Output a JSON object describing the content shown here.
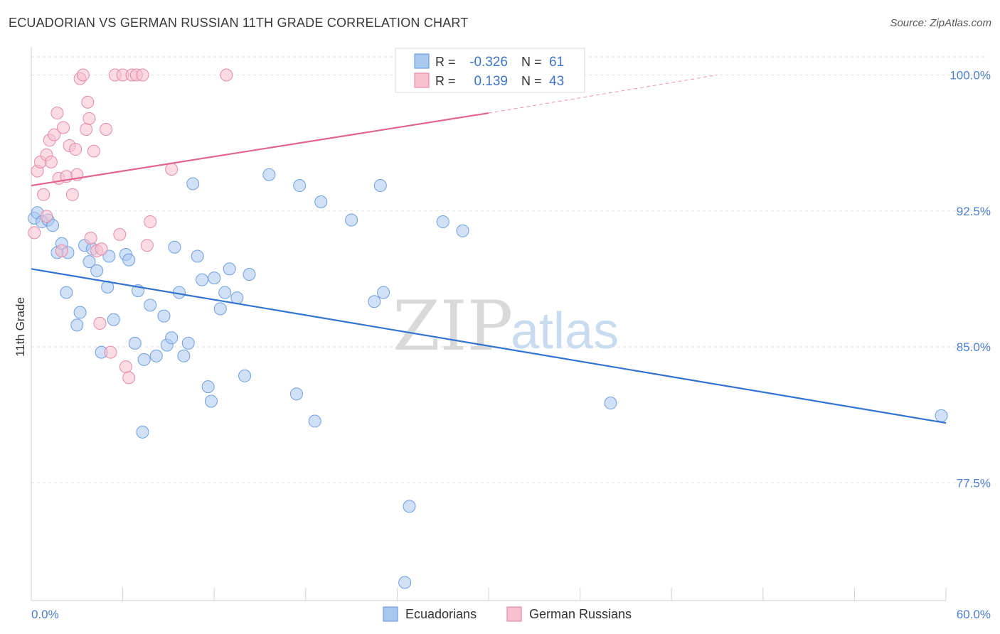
{
  "header": {
    "title": "ECUADORIAN VS GERMAN RUSSIAN 11TH GRADE CORRELATION CHART",
    "source": "Source: ZipAtlas.com"
  },
  "watermark": {
    "zip": "ZIP",
    "atlas": "atlas"
  },
  "stats": {
    "rows": [
      {
        "r_label": "R = ",
        "r_value": "-0.326",
        "n_label": "N = ",
        "n_value": "61",
        "color": "#a9c8f0",
        "stroke": "#6f9fdf"
      },
      {
        "r_label": "R = ",
        "r_value": "0.139",
        "n_label": "N = ",
        "n_value": "43",
        "color": "#f7bfd0",
        "stroke": "#e58aa7"
      }
    ]
  },
  "legend": {
    "items": [
      {
        "label": "Ecuadorians",
        "color": "#a9c8f0",
        "stroke": "#6f9fdf"
      },
      {
        "label": "German Russians",
        "color": "#f7bfd0",
        "stroke": "#e58aa7"
      }
    ]
  },
  "chart_data": {
    "type": "scatter",
    "title": "ECUADORIAN VS GERMAN RUSSIAN 11TH GRADE CORRELATION CHART",
    "xlabel": "",
    "ylabel": "11th Grade",
    "xlim": [
      0,
      60
    ],
    "ylim": [
      71,
      101
    ],
    "x_tick_labels": [
      {
        "value": 0,
        "label": "0.0%"
      },
      {
        "value": 60,
        "label": "60.0%"
      }
    ],
    "y_tick_labels": [
      {
        "value": 100,
        "label": "100.0%"
      },
      {
        "value": 92.5,
        "label": "92.5%"
      },
      {
        "value": 85,
        "label": "85.0%"
      },
      {
        "value": 77.5,
        "label": "77.5%"
      }
    ],
    "x_minor_ticks": [
      0,
      6,
      12,
      18,
      24,
      30,
      36,
      42,
      48,
      54,
      60
    ],
    "grid": true,
    "legend_position": "bottom-center",
    "series": [
      {
        "name": "Ecuadorians",
        "color": "#a9c8f0",
        "stroke": "#6f9fdf",
        "trend_color": "#3273d1",
        "trend": {
          "x0": 0,
          "y0": 89.3,
          "x1": 60,
          "y1": 80.8,
          "dashed_from": null
        },
        "points": [
          [
            0.2,
            92.1
          ],
          [
            0.4,
            92.4
          ],
          [
            0.7,
            91.9
          ],
          [
            1.1,
            92.0
          ],
          [
            1.4,
            91.7
          ],
          [
            1.7,
            90.2
          ],
          [
            2.0,
            90.7
          ],
          [
            2.4,
            90.2
          ],
          [
            2.3,
            88.0
          ],
          [
            3.0,
            86.2
          ],
          [
            3.2,
            86.9
          ],
          [
            3.5,
            90.6
          ],
          [
            3.8,
            89.7
          ],
          [
            4.0,
            90.4
          ],
          [
            4.3,
            89.2
          ],
          [
            4.6,
            84.7
          ],
          [
            5.0,
            88.3
          ],
          [
            5.4,
            86.5
          ],
          [
            5.1,
            90.0
          ],
          [
            6.2,
            90.1
          ],
          [
            6.4,
            89.8
          ],
          [
            6.8,
            85.2
          ],
          [
            7.0,
            88.1
          ],
          [
            7.4,
            84.3
          ],
          [
            7.8,
            87.3
          ],
          [
            7.3,
            80.3
          ],
          [
            8.2,
            84.5
          ],
          [
            8.7,
            86.7
          ],
          [
            8.9,
            85.1
          ],
          [
            9.2,
            85.5
          ],
          [
            9.4,
            90.5
          ],
          [
            9.7,
            88.0
          ],
          [
            10.0,
            84.5
          ],
          [
            10.3,
            85.2
          ],
          [
            10.6,
            94.0
          ],
          [
            10.9,
            90.0
          ],
          [
            11.2,
            88.7
          ],
          [
            11.6,
            82.8
          ],
          [
            11.8,
            82.0
          ],
          [
            12.0,
            88.8
          ],
          [
            12.4,
            87.1
          ],
          [
            12.7,
            88.0
          ],
          [
            13.0,
            89.3
          ],
          [
            13.5,
            87.7
          ],
          [
            14.0,
            83.4
          ],
          [
            14.3,
            89.0
          ],
          [
            15.6,
            94.5
          ],
          [
            17.4,
            82.4
          ],
          [
            17.6,
            93.9
          ],
          [
            18.6,
            80.9
          ],
          [
            19.0,
            93.0
          ],
          [
            21.0,
            92.0
          ],
          [
            22.5,
            87.5
          ],
          [
            22.9,
            93.9
          ],
          [
            23.1,
            88.0
          ],
          [
            24.5,
            72.0
          ],
          [
            24.8,
            76.2
          ],
          [
            27.0,
            91.9
          ],
          [
            28.3,
            91.4
          ],
          [
            38.0,
            81.9
          ],
          [
            59.7,
            81.2
          ]
        ]
      },
      {
        "name": "German Russians",
        "color": "#f7bfd0",
        "stroke": "#e58aa7",
        "trend_color": "#e2648d",
        "trend": {
          "x0": 0,
          "y0": 93.9,
          "x1": 30,
          "y1": 97.9,
          "dashed_to_x": 45,
          "dashed_to_y": 100.0
        },
        "points": [
          [
            0.2,
            91.3
          ],
          [
            0.4,
            94.7
          ],
          [
            0.6,
            95.2
          ],
          [
            0.8,
            93.4
          ],
          [
            1.0,
            95.6
          ],
          [
            1.2,
            96.4
          ],
          [
            1.3,
            95.2
          ],
          [
            1.5,
            96.7
          ],
          [
            1.7,
            97.9
          ],
          [
            1.8,
            94.3
          ],
          [
            2.0,
            90.3
          ],
          [
            2.1,
            97.1
          ],
          [
            2.3,
            94.4
          ],
          [
            2.5,
            96.1
          ],
          [
            2.7,
            93.4
          ],
          [
            2.9,
            95.9
          ],
          [
            3.0,
            94.5
          ],
          [
            3.2,
            99.8
          ],
          [
            3.4,
            100.0
          ],
          [
            3.6,
            97.0
          ],
          [
            3.7,
            98.5
          ],
          [
            3.8,
            97.6
          ],
          [
            3.9,
            91.0
          ],
          [
            4.1,
            95.8
          ],
          [
            4.3,
            90.3
          ],
          [
            4.6,
            90.4
          ],
          [
            4.5,
            86.3
          ],
          [
            4.9,
            97.0
          ],
          [
            5.2,
            84.7
          ],
          [
            5.5,
            100.0
          ],
          [
            5.8,
            91.2
          ],
          [
            6.0,
            100.0
          ],
          [
            6.2,
            83.9
          ],
          [
            6.4,
            83.3
          ],
          [
            6.6,
            100.0
          ],
          [
            6.9,
            100.0
          ],
          [
            7.3,
            100.0
          ],
          [
            7.6,
            90.6
          ],
          [
            7.8,
            91.9
          ],
          [
            9.2,
            94.8
          ],
          [
            12.8,
            100.0
          ],
          [
            27.8,
            100.0
          ],
          [
            1.0,
            92.2
          ]
        ]
      }
    ]
  }
}
